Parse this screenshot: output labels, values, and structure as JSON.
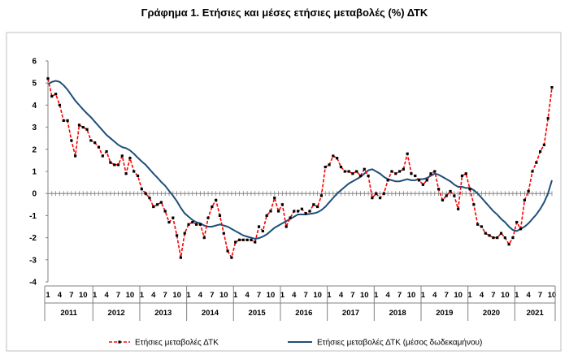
{
  "chart_data": {
    "type": "line",
    "title": "Γράφημα 1. Ετήσιες και μέσες ετήσιες μεταβολές (%) ΔΤΚ",
    "xlabel": "",
    "ylabel": "",
    "ylim": [
      -4,
      6
    ],
    "yticks": [
      "-4",
      "-3",
      "-2",
      "-1",
      "0",
      "1",
      "2",
      "3",
      "4",
      "5",
      "6"
    ],
    "month_ticks": [
      "1",
      "4",
      "7",
      "10"
    ],
    "years": [
      "2011",
      "2012",
      "2013",
      "2014",
      "2015",
      "2016",
      "2017",
      "2018",
      "2019",
      "2020",
      "2021"
    ],
    "x_start": "2011-01",
    "x_end": "2021-10",
    "legend_position": "bottom",
    "grid": false,
    "series": [
      {
        "name": "Ετήσιες μεταβολές ΔΤΚ",
        "color": "#ff0000",
        "marker_color": "#000000",
        "style": "dashed",
        "values": [
          5.2,
          4.4,
          4.5,
          4.0,
          3.3,
          3.3,
          2.4,
          1.7,
          3.1,
          3.0,
          2.9,
          2.4,
          2.3,
          2.1,
          1.7,
          1.9,
          1.4,
          1.3,
          1.3,
          1.7,
          0.9,
          1.6,
          1.0,
          0.8,
          0.2,
          0.0,
          -0.2,
          -0.6,
          -0.5,
          -0.4,
          -0.8,
          -1.3,
          -1.1,
          -1.9,
          -2.9,
          -1.8,
          -1.4,
          -1.3,
          -1.4,
          -1.4,
          -2.0,
          -1.1,
          -0.6,
          -0.3,
          -1.0,
          -1.8,
          -2.6,
          -2.9,
          -2.2,
          -2.1,
          -2.1,
          -2.1,
          -2.1,
          -2.2,
          -1.5,
          -1.7,
          -1.0,
          -0.8,
          -0.2,
          -0.8,
          -0.5,
          -1.5,
          -1.1,
          -0.8,
          -0.8,
          -0.7,
          -0.9,
          -0.8,
          -0.5,
          -0.6,
          -0.1,
          1.2,
          1.3,
          1.7,
          1.6,
          1.2,
          1.0,
          1.0,
          0.9,
          1.0,
          0.8,
          1.1,
          0.8,
          -0.2,
          0.0,
          -0.2,
          0.0,
          0.6,
          1.0,
          0.9,
          1.0,
          1.1,
          1.8,
          0.9,
          0.8,
          0.6,
          0.4,
          0.6,
          0.9,
          1.0,
          0.2,
          -0.3,
          -0.1,
          0.1,
          -0.1,
          -0.7,
          0.8,
          0.9,
          0.2,
          -0.5,
          -1.4,
          -1.5,
          -1.8,
          -1.9,
          -2.0,
          -2.0,
          -1.8,
          -2.0,
          -2.3,
          -2.0,
          -1.3,
          -1.6,
          -0.3,
          0.1,
          1.0,
          1.4,
          1.9,
          2.2,
          3.4,
          4.8
        ]
      },
      {
        "name": "Ετήσιες μεταβολές ΔΤΚ (μέσος δωδεκαμήνου)",
        "color": "#1f4e79",
        "style": "solid",
        "values": [
          4.95,
          5.05,
          5.1,
          5.05,
          4.9,
          4.7,
          4.45,
          4.2,
          4.0,
          3.8,
          3.62,
          3.45,
          3.25,
          3.05,
          2.85,
          2.65,
          2.5,
          2.35,
          2.2,
          2.1,
          2.05,
          1.95,
          1.8,
          1.62,
          1.45,
          1.3,
          1.1,
          0.9,
          0.72,
          0.52,
          0.35,
          0.12,
          -0.1,
          -0.35,
          -0.65,
          -0.9,
          -1.05,
          -1.2,
          -1.3,
          -1.35,
          -1.45,
          -1.5,
          -1.5,
          -1.45,
          -1.4,
          -1.45,
          -1.5,
          -1.6,
          -1.7,
          -1.8,
          -1.9,
          -1.95,
          -2.0,
          -2.05,
          -2.02,
          -1.95,
          -1.85,
          -1.7,
          -1.55,
          -1.45,
          -1.35,
          -1.25,
          -1.15,
          -1.05,
          -0.95,
          -0.95,
          -0.95,
          -0.92,
          -0.9,
          -0.85,
          -0.75,
          -0.6,
          -0.4,
          -0.2,
          0.0,
          0.15,
          0.3,
          0.45,
          0.55,
          0.65,
          0.75,
          0.9,
          1.05,
          1.1,
          1.0,
          0.9,
          0.75,
          0.65,
          0.6,
          0.55,
          0.55,
          0.6,
          0.65,
          0.6,
          0.6,
          0.65,
          0.65,
          0.7,
          0.8,
          0.9,
          0.85,
          0.75,
          0.65,
          0.55,
          0.4,
          0.3,
          0.3,
          0.25,
          0.25,
          0.15,
          0.0,
          -0.2,
          -0.4,
          -0.6,
          -0.8,
          -0.95,
          -1.15,
          -1.3,
          -1.5,
          -1.65,
          -1.7,
          -1.6,
          -1.5,
          -1.35,
          -1.15,
          -0.95,
          -0.7,
          -0.4,
          0.0,
          0.6
        ]
      }
    ]
  }
}
